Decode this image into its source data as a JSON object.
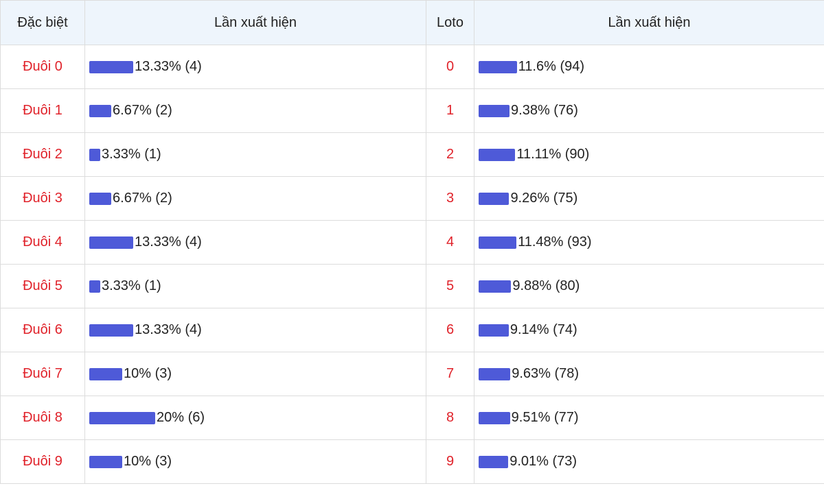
{
  "table": {
    "header": [
      "Đặc biệt",
      "Lần xuất hiện",
      "Loto",
      "Lần xuất hiện"
    ],
    "rows": [
      {
        "special": "Đuôi 0",
        "special_percent": 13.33,
        "special_label": "13.33% (4)",
        "loto": "0",
        "loto_percent": 11.6,
        "loto_label": "11.6% (94)"
      },
      {
        "special": "Đuôi 1",
        "special_percent": 6.67,
        "special_label": "6.67% (2)",
        "loto": "1",
        "loto_percent": 9.38,
        "loto_label": "9.38% (76)"
      },
      {
        "special": "Đuôi 2",
        "special_percent": 3.33,
        "special_label": "3.33% (1)",
        "loto": "2",
        "loto_percent": 11.11,
        "loto_label": "11.11% (90)"
      },
      {
        "special": "Đuôi 3",
        "special_percent": 6.67,
        "special_label": "6.67% (2)",
        "loto": "3",
        "loto_percent": 9.26,
        "loto_label": "9.26% (75)"
      },
      {
        "special": "Đuôi 4",
        "special_percent": 13.33,
        "special_label": "13.33% (4)",
        "loto": "4",
        "loto_percent": 11.48,
        "loto_label": "11.48% (93)"
      },
      {
        "special": "Đuôi 5",
        "special_percent": 3.33,
        "special_label": "3.33% (1)",
        "loto": "5",
        "loto_percent": 9.88,
        "loto_label": "9.88% (80)"
      },
      {
        "special": "Đuôi 6",
        "special_percent": 13.33,
        "special_label": "13.33% (4)",
        "loto": "6",
        "loto_percent": 9.14,
        "loto_label": "9.14% (74)"
      },
      {
        "special": "Đuôi 7",
        "special_percent": 10,
        "special_label": "10% (3)",
        "loto": "7",
        "loto_percent": 9.63,
        "loto_label": "9.63% (78)"
      },
      {
        "special": "Đuôi 8",
        "special_percent": 20,
        "special_label": "20% (6)",
        "loto": "8",
        "loto_percent": 9.51,
        "loto_label": "9.51% (77)"
      },
      {
        "special": "Đuôi 9",
        "special_percent": 10,
        "special_label": "10% (3)",
        "loto": "9",
        "loto_percent": 9.01,
        "loto_label": "9.01% (73)"
      }
    ]
  }
}
